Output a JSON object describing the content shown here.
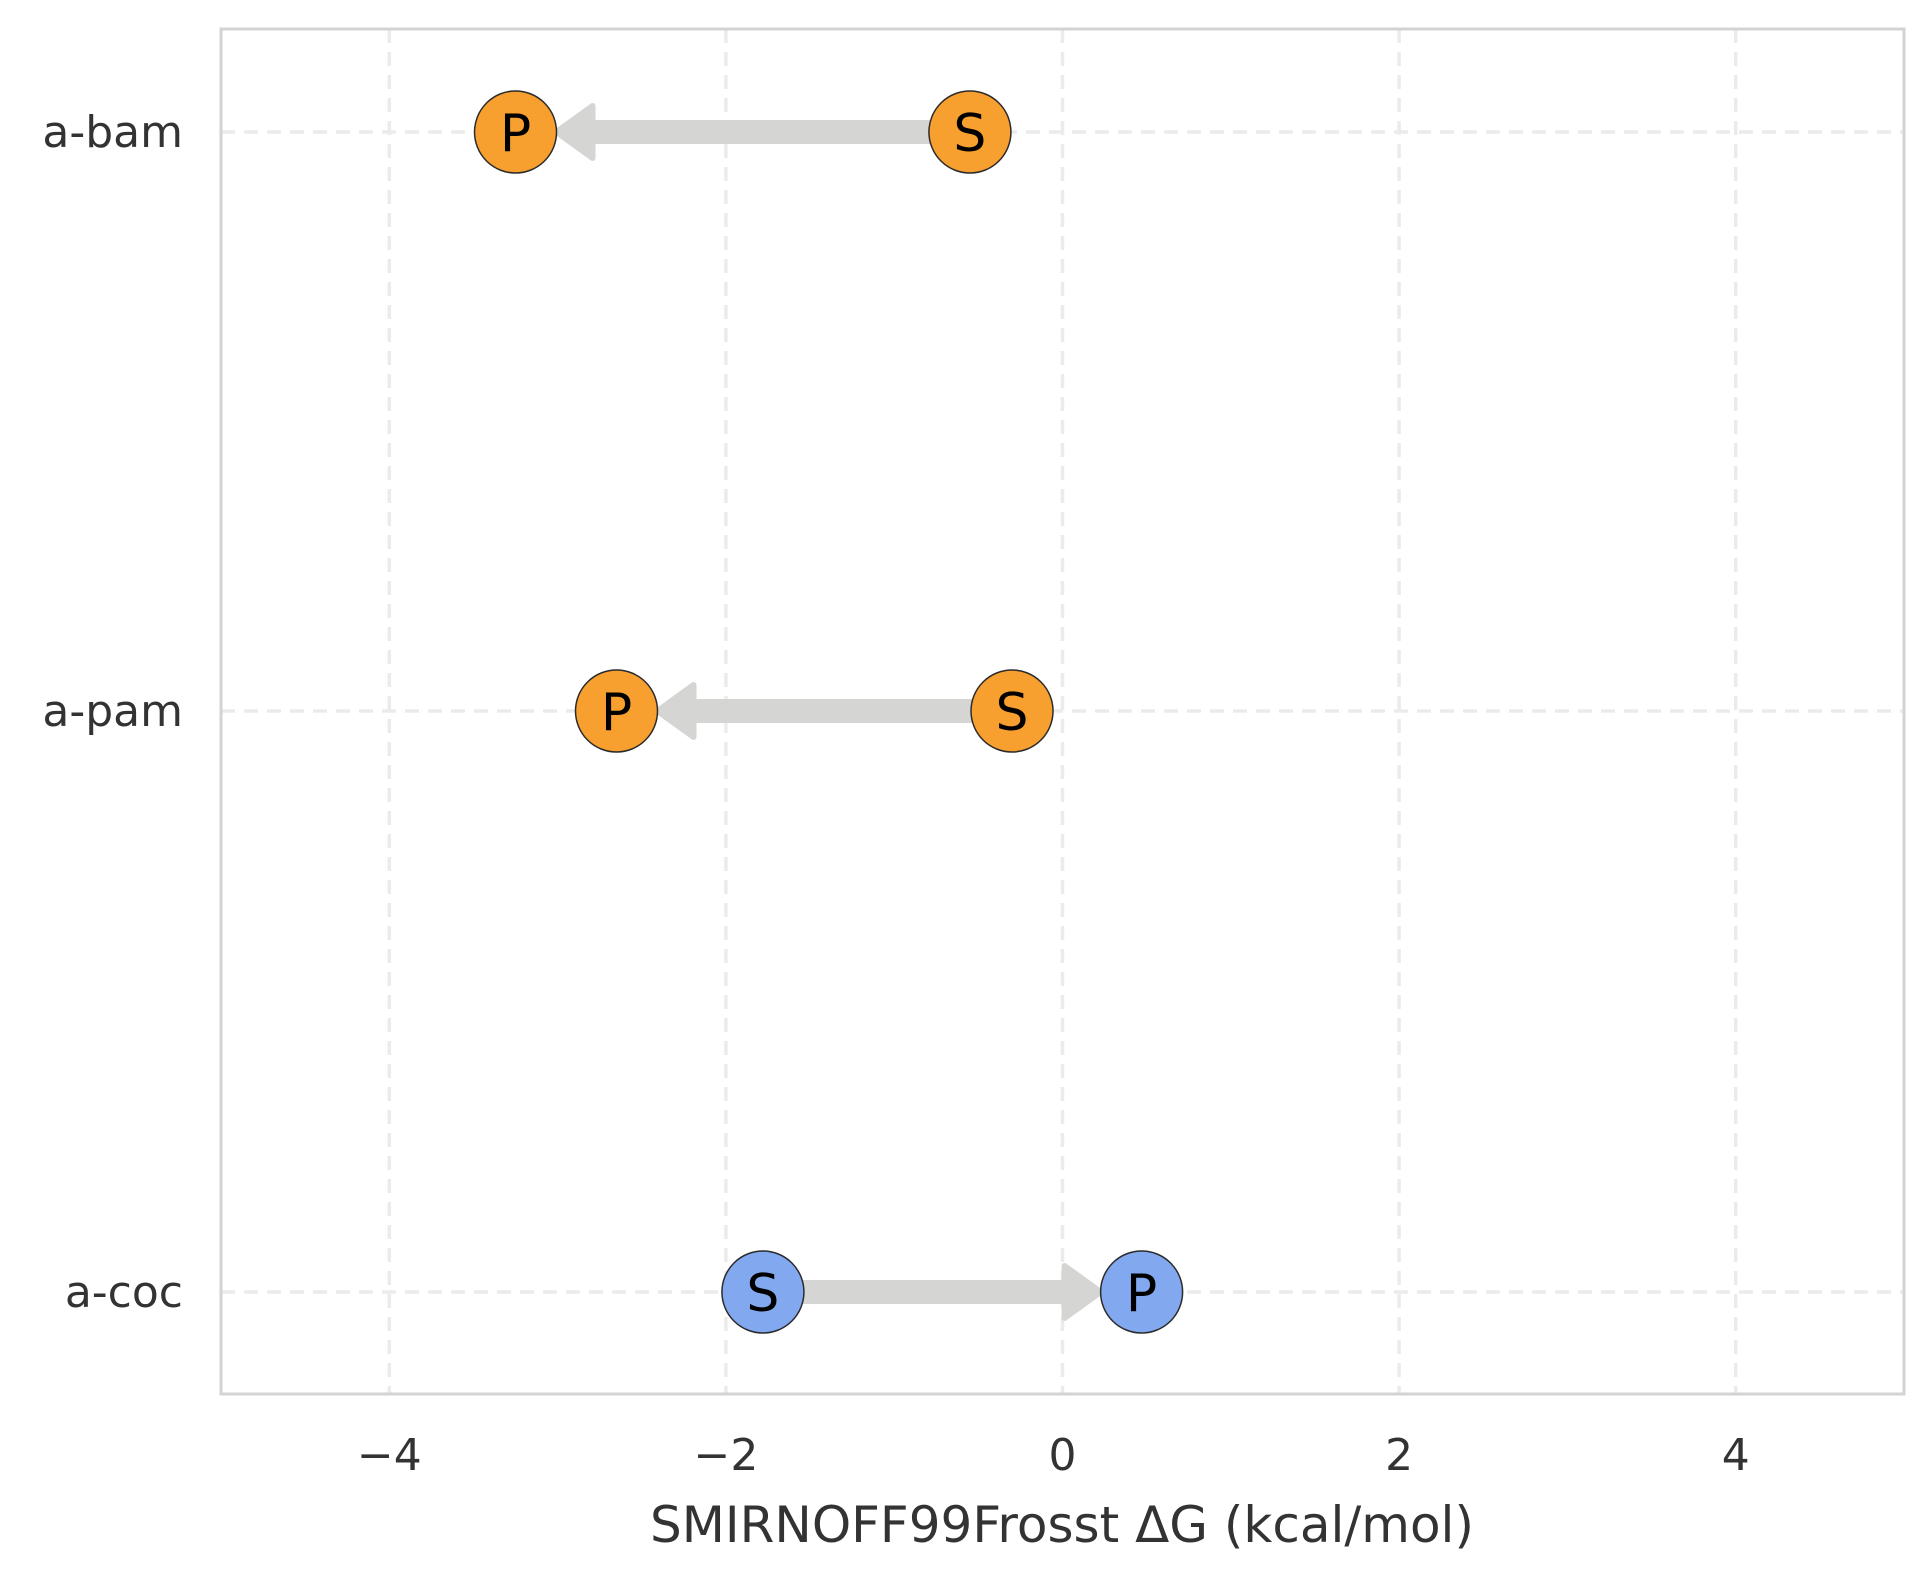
{
  "chart_data": {
    "type": "scatter",
    "xlabel": "SMIRNOFF99Frosst ΔG (kcal/mol)",
    "ylabel": "",
    "xlim": [
      -5,
      5
    ],
    "xticks": [
      -4,
      -2,
      0,
      2,
      4
    ],
    "xtick_labels": [
      "−4",
      "−2",
      "0",
      "2",
      "4"
    ],
    "grid": true,
    "categories": [
      "a-bam",
      "a-pam",
      "a-coc"
    ],
    "rows": [
      {
        "label": "a-bam",
        "S": -0.55,
        "P": -3.25,
        "color": "#f7a030"
      },
      {
        "label": "a-pam",
        "S": -0.3,
        "P": -2.65,
        "color": "#f7a030"
      },
      {
        "label": "a-coc",
        "S": -1.78,
        "P": 0.47,
        "color": "#82a8ef"
      }
    ],
    "marker_labels": {
      "start": "S",
      "end": "P"
    },
    "arrow_color": "#d5d5d3"
  }
}
